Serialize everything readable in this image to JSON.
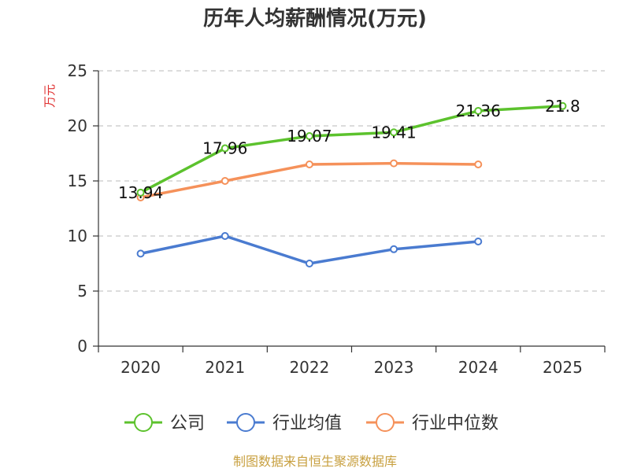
{
  "chart_data": {
    "type": "line",
    "title": "历年人均薪酬情况(万元)",
    "ylabel": "万元",
    "xlabel": "",
    "categories": [
      "2020",
      "2021",
      "2022",
      "2023",
      "2024",
      "2025"
    ],
    "ylim": [
      0,
      25
    ],
    "yticks": [
      0,
      5,
      10,
      15,
      20,
      25
    ],
    "grid": true,
    "legend_position": "bottom",
    "series": [
      {
        "name": "公司",
        "color": "#5cc22d",
        "values": [
          13.94,
          17.96,
          19.07,
          19.41,
          21.36,
          21.8
        ],
        "labels": [
          "13.94",
          "17.96",
          "19.07",
          "19.41",
          "21.36",
          "21.8"
        ]
      },
      {
        "name": "行业均值",
        "color": "#4a7bd0",
        "values": [
          8.4,
          10.0,
          7.5,
          8.8,
          9.5,
          null
        ]
      },
      {
        "name": "行业中位数",
        "color": "#f5915a",
        "values": [
          13.5,
          15.0,
          16.5,
          16.6,
          16.5,
          null
        ]
      }
    ]
  },
  "ylabel_color": "#e03030",
  "source": {
    "text": "制图数据来自恒生聚源数据库",
    "color": "#c8a040"
  }
}
